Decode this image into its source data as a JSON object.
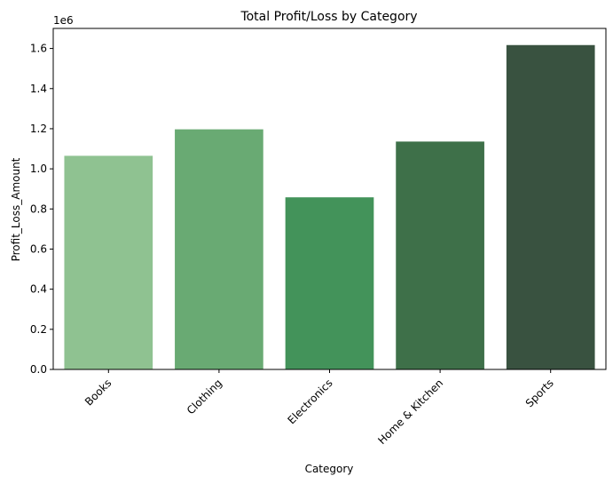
{
  "chart_data": {
    "type": "bar",
    "title": "Total Profit/Loss by Category",
    "xlabel": "Category",
    "ylabel": "Profit_Loss_Amount",
    "offset_label": "1e6",
    "categories": [
      "Books",
      "Clothing",
      "Electronics",
      "Home & Kitchen",
      "Sports"
    ],
    "values": [
      1065000,
      1197000,
      858000,
      1136000,
      1617000
    ],
    "colors": [
      "#8fc291",
      "#69aa73",
      "#43935a",
      "#3e7049",
      "#395240"
    ],
    "ylim": [
      0,
      1700000
    ],
    "yticks": [
      0,
      200000,
      400000,
      600000,
      800000,
      1000000,
      1200000,
      1400000,
      1600000
    ],
    "ytick_labels": [
      "0.0",
      "0.2",
      "0.4",
      "0.6",
      "0.8",
      "1.0",
      "1.2",
      "1.4",
      "1.6"
    ],
    "grid": false,
    "legend": "none"
  }
}
